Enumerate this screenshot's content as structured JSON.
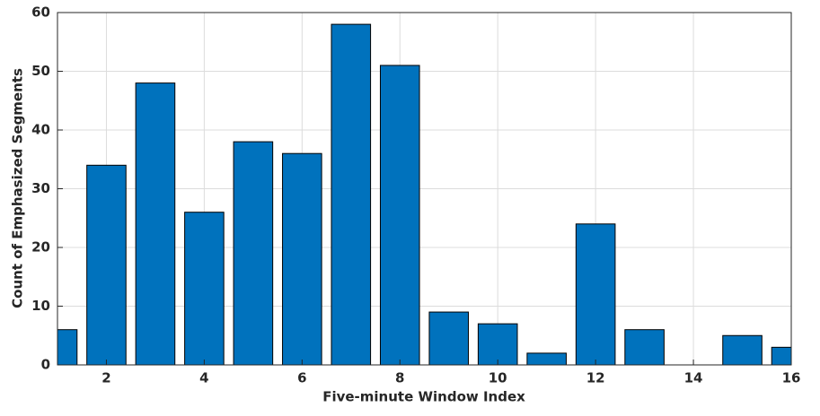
{
  "chart_data": {
    "type": "bar",
    "xlabel": "Five-minute Window Index",
    "ylabel": "Count of Emphasized Segments",
    "x": [
      1,
      2,
      3,
      4,
      5,
      6,
      7,
      8,
      9,
      10,
      11,
      12,
      13,
      14,
      15,
      16
    ],
    "values": [
      6,
      34,
      48,
      26,
      38,
      36,
      58,
      51,
      9,
      7,
      2,
      24,
      6,
      0,
      5,
      3
    ],
    "color": "#0072bd",
    "xlim": [
      1,
      16
    ],
    "xticks": [
      2,
      4,
      6,
      8,
      10,
      12,
      14,
      16
    ],
    "ylim": [
      0,
      60
    ],
    "yticks": [
      0,
      10,
      20,
      30,
      40,
      50,
      60
    ],
    "grid": true
  }
}
